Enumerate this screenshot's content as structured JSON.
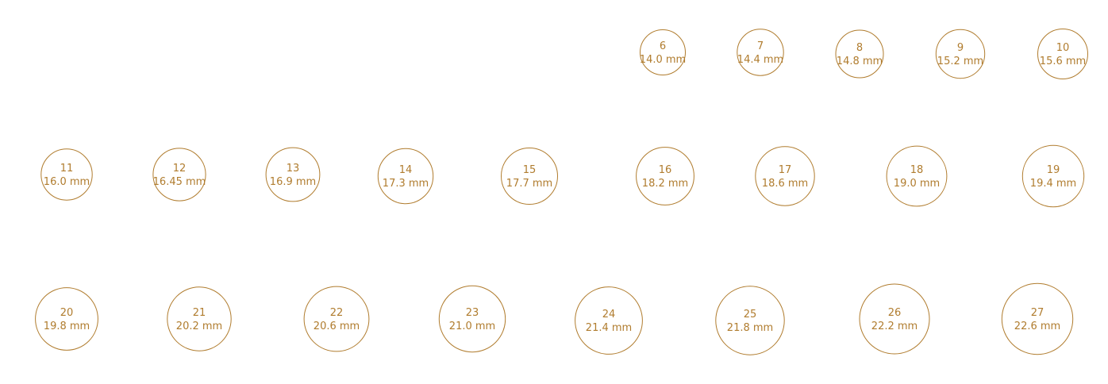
{
  "style": {
    "ring_color": "#b07c2e",
    "background": "#ffffff"
  },
  "rings": [
    {
      "size": "6",
      "diameter": "14.0 mm",
      "diameter_mm": 14.0
    },
    {
      "size": "7",
      "diameter": "14.4 mm",
      "diameter_mm": 14.4
    },
    {
      "size": "8",
      "diameter": "14.8 mm",
      "diameter_mm": 14.8
    },
    {
      "size": "9",
      "diameter": "15.2 mm",
      "diameter_mm": 15.2
    },
    {
      "size": "10",
      "diameter": "15.6 mm",
      "diameter_mm": 15.6
    },
    {
      "size": "11",
      "diameter": "16.0 mm",
      "diameter_mm": 16.0
    },
    {
      "size": "12",
      "diameter": "16.45 mm",
      "diameter_mm": 16.45
    },
    {
      "size": "13",
      "diameter": "16.9 mm",
      "diameter_mm": 16.9
    },
    {
      "size": "14",
      "diameter": "17.3 mm",
      "diameter_mm": 17.3
    },
    {
      "size": "15",
      "diameter": "17.7 mm",
      "diameter_mm": 17.7
    },
    {
      "size": "16",
      "diameter": "18.2 mm",
      "diameter_mm": 18.2
    },
    {
      "size": "17",
      "diameter": "18.6 mm",
      "diameter_mm": 18.6
    },
    {
      "size": "18",
      "diameter": "19.0 mm",
      "diameter_mm": 19.0
    },
    {
      "size": "19",
      "diameter": "19.4 mm",
      "diameter_mm": 19.4
    },
    {
      "size": "20",
      "diameter": "19.8 mm",
      "diameter_mm": 19.8
    },
    {
      "size": "21",
      "diameter": "20.2 mm",
      "diameter_mm": 20.2
    },
    {
      "size": "22",
      "diameter": "20.6 mm",
      "diameter_mm": 20.6
    },
    {
      "size": "23",
      "diameter": "21.0 mm",
      "diameter_mm": 21.0
    },
    {
      "size": "24",
      "diameter": "21.4 mm",
      "diameter_mm": 21.4
    },
    {
      "size": "25",
      "diameter": "21.8 mm",
      "diameter_mm": 21.8
    },
    {
      "size": "26",
      "diameter": "22.2 mm",
      "diameter_mm": 22.2
    },
    {
      "size": "27",
      "diameter": "22.6 mm",
      "diameter_mm": 22.6
    }
  ]
}
